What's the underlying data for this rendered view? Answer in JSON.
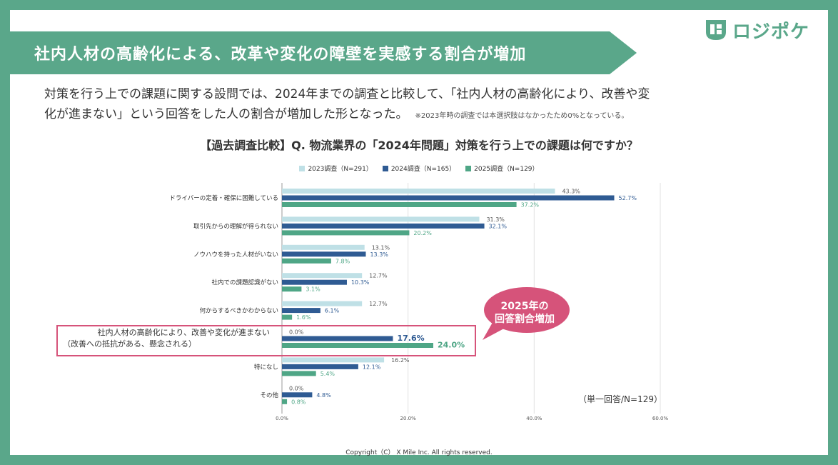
{
  "header": {
    "title": "社内人材の高齢化による、改革や変化の障壁を実感する割合が増加",
    "logo_text": "ロジポケ"
  },
  "intro": {
    "line1": "対策を行う上での課題に関する設問では、2024年までの調査と比較して、「社内人材の高齢化により、改善や変",
    "line2": "化が進まない」という回答をした人の割合が増加した形となった。",
    "note": "※2023年時の調査では本選択肢はなかったため0%となっている。"
  },
  "colors": {
    "brand": "#5aa78a",
    "series_2023": "#bfe0e6",
    "series_2024": "#2f5b93",
    "series_2025": "#4fa686",
    "highlight": "#d6537a"
  },
  "chart_data": {
    "type": "bar",
    "orientation": "horizontal",
    "title": "【過去調査比較】Q. 物流業界の「2024年問題」対策を行う上での課題は何ですか？",
    "categories": [
      "ドライバーの定着・確保に困難している",
      "取引先からの理解が得られない",
      "ノウハウを持った人材がいない",
      "社内での課題認識がない",
      "何からするべきかわからない",
      "社内人材の高齢化により、改善や変化が進まない",
      "特になし",
      "その他"
    ],
    "highlight_subtitle": "（改善への抵抗がある、懸念される）",
    "series": [
      {
        "name": "2023調査（N=291）",
        "values": [
          43.3,
          31.3,
          13.1,
          12.7,
          12.7,
          0.0,
          16.2,
          0.0
        ],
        "labels": [
          "43.3%",
          "31.3%",
          "13.1%",
          "12.7%",
          "12.7%",
          "0.0%",
          "16.2%",
          "0.0%"
        ]
      },
      {
        "name": "2024調査（N=165）",
        "values": [
          52.7,
          32.1,
          13.3,
          10.3,
          6.1,
          17.6,
          12.1,
          4.8
        ],
        "labels": [
          "52.7%",
          "32.1%",
          "13.3%",
          "10.3%",
          "6.1%",
          "17.6%",
          "12.1%",
          "4.8%"
        ]
      },
      {
        "name": "2025調査（N=129）",
        "values": [
          37.2,
          20.2,
          7.8,
          3.1,
          1.6,
          24.0,
          5.4,
          0.8
        ],
        "labels": [
          "37.2%",
          "20.2%",
          "7.8%",
          "3.1%",
          "1.6%",
          "24.0%",
          "5.4%",
          "0.8%"
        ]
      }
    ],
    "xlim": [
      0,
      60
    ],
    "xticks": [
      "0.0%",
      "20.0%",
      "40.0%",
      "60.0%"
    ],
    "grid": true,
    "legend": "top-center",
    "highlight_index": 5
  },
  "annotations": {
    "callout_line1": "2025年の",
    "callout_line2": "回答割合増加",
    "unit_note": "（単一回答/N=129）"
  },
  "footer": {
    "copyright": "Copyright（C） X Mile Inc. All rights reserved."
  }
}
